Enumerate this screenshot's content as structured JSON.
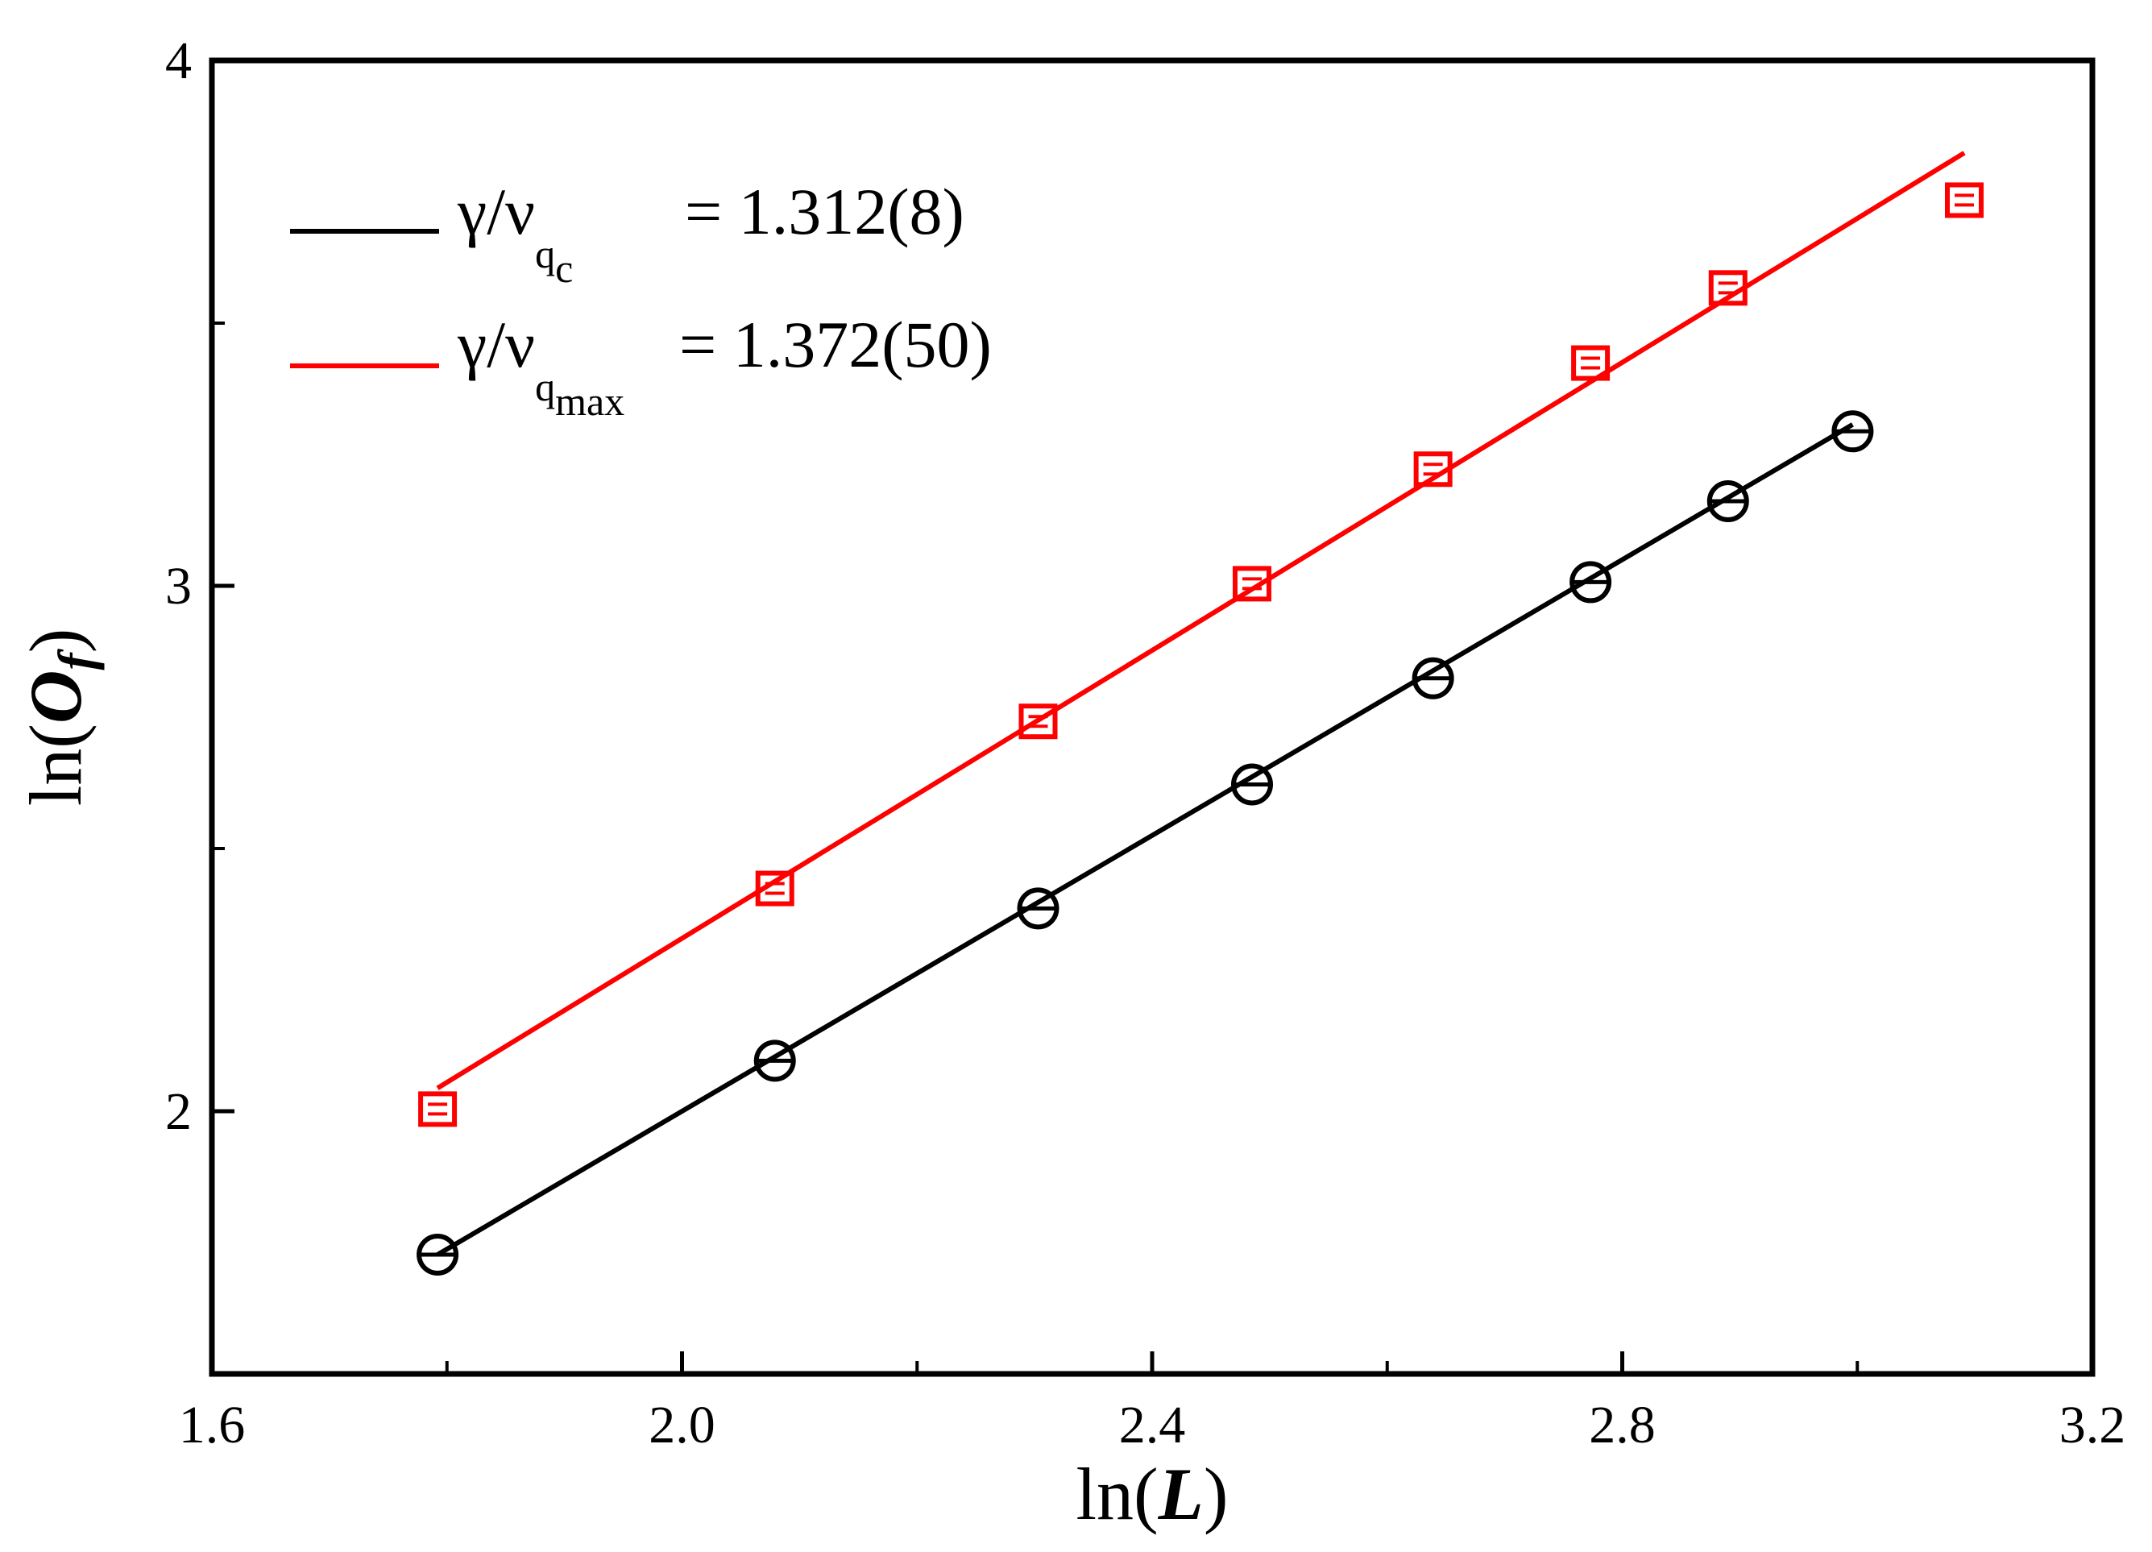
{
  "chart_data": {
    "type": "scatter",
    "xlabel_prefix": "ln(",
    "xlabel_var": "L",
    "xlabel_suffix": ")",
    "ylabel_prefix": "ln(",
    "ylabel_var": "O",
    "ylabel_sub": "f",
    "ylabel_suffix": ")",
    "xlim": [
      1.6,
      3.2
    ],
    "ylim": [
      1.5,
      4.0
    ],
    "x_ticks": [
      "1.6",
      "2.0",
      "2.4",
      "2.8",
      "3.2"
    ],
    "x_tick_values": [
      1.6,
      2.0,
      2.4,
      2.8,
      3.2
    ],
    "x_minor_tick_values": [
      1.8,
      2.2,
      2.6,
      3.0
    ],
    "y_ticks": [
      "2",
      "3",
      "4"
    ],
    "y_tick_values": [
      2,
      3,
      4
    ],
    "y_minor_tick_values": [
      2.5,
      3.5
    ],
    "grid": false,
    "legend_position": "top-left",
    "series": [
      {
        "name": "γ/ν",
        "subscript": "q",
        "subsubscript": "c",
        "legend_value": "= 1.312(8)",
        "color": "#000000",
        "marker": "circle",
        "x": [
          1.792,
          2.079,
          2.303,
          2.485,
          2.639,
          2.773,
          2.89,
          2.996
        ],
        "y": [
          1.727,
          2.096,
          2.386,
          2.622,
          2.824,
          3.007,
          3.161,
          3.294
        ],
        "fit": {
          "x": [
            1.792,
            2.996
          ],
          "y": [
            1.727,
            3.307
          ]
        }
      },
      {
        "name": "γ/ν",
        "subscript": "q",
        "subsubscript": "max",
        "legend_value": "= 1.372(50)",
        "color": "#ff0000",
        "marker": "square",
        "x": [
          1.792,
          2.079,
          2.303,
          2.485,
          2.639,
          2.773,
          2.89,
          3.091
        ],
        "y": [
          2.004,
          2.424,
          2.742,
          3.004,
          3.222,
          3.424,
          3.567,
          3.734
        ],
        "fit": {
          "x": [
            1.792,
            3.091
          ],
          "y": [
            2.044,
            3.824
          ]
        }
      }
    ]
  }
}
